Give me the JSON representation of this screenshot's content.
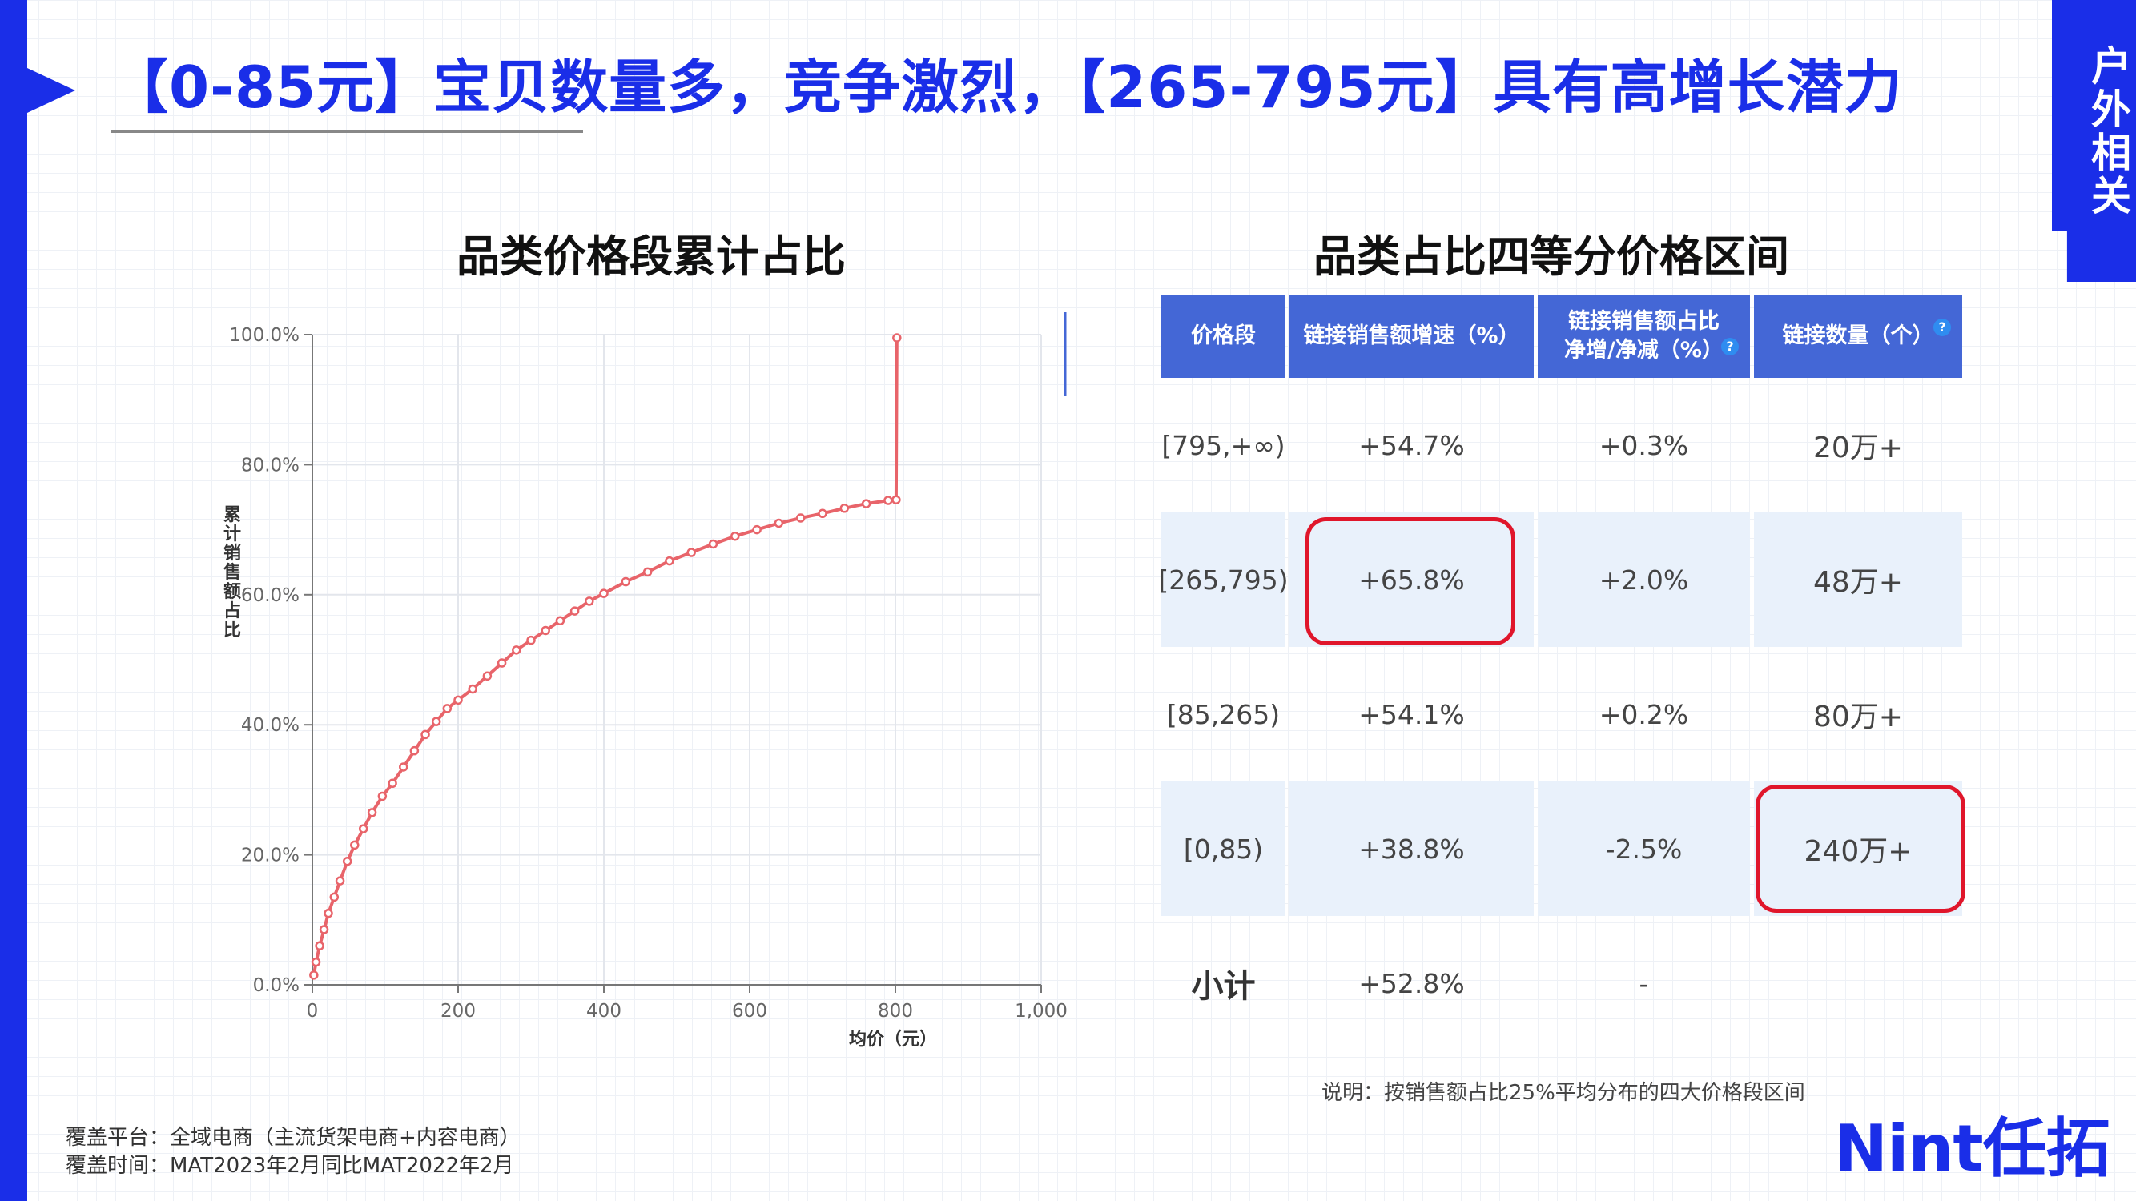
{
  "title": "【0-85元】宝贝数量多，竞争激烈，【265-795元】具有高增长潜力",
  "side_tab": "户外相关",
  "chart_data": {
    "type": "line",
    "title": "品类价格段累计占比",
    "xlabel": "均价（元）",
    "ylabel": "累计销售额占比",
    "xlim": [
      0,
      1000
    ],
    "ylim": [
      0,
      100
    ],
    "x_ticks": [
      "0",
      "200",
      "400",
      "600",
      "800",
      "1,000"
    ],
    "y_ticks": [
      "0.0%",
      "20.0%",
      "40.0%",
      "60.0%",
      "80.0%",
      "100.0%"
    ],
    "grid": true,
    "color": "#e8646a",
    "series": [
      {
        "x": [
          2,
          5,
          10,
          16,
          22,
          30,
          38,
          48,
          58,
          70,
          82,
          96,
          110,
          125,
          140,
          155,
          170,
          185,
          200,
          220,
          240,
          260,
          280,
          300,
          320,
          340,
          360,
          380,
          400,
          430,
          460,
          490,
          520,
          550,
          580,
          610,
          640,
          670,
          700,
          730,
          760,
          790,
          801,
          802
        ],
        "y": [
          1.5,
          3.5,
          6,
          8.5,
          11,
          13.5,
          16,
          19,
          21.5,
          24,
          26.5,
          29,
          31,
          33.5,
          36,
          38.5,
          40.5,
          42.5,
          43.8,
          45.5,
          47.5,
          49.5,
          51.5,
          53,
          54.5,
          56,
          57.5,
          59,
          60.2,
          62,
          63.5,
          65.2,
          66.5,
          67.8,
          69,
          70,
          71,
          71.8,
          72.5,
          73.3,
          74,
          74.5,
          74.6,
          99.5
        ]
      }
    ]
  },
  "table": {
    "title": "品类占比四等分价格区间",
    "headers": [
      "价格段",
      "链接销售额增速（%）",
      "链接销售额占比\n净增/净减（%）",
      "链接数量（个）"
    ],
    "rows": [
      {
        "range": "[795,+∞)",
        "growth": "+54.7%",
        "share_change": "+0.3%",
        "count": "20万+"
      },
      {
        "range": "[265,795)",
        "growth": "+65.8%",
        "share_change": "+2.0%",
        "count": "48万+"
      },
      {
        "range": "[85,265)",
        "growth": "+54.1%",
        "share_change": "+0.2%",
        "count": "80万+"
      },
      {
        "range": "[0,85)",
        "growth": "+38.8%",
        "share_change": "-2.5%",
        "count": "240万+"
      }
    ],
    "subtotal": {
      "label": "小计",
      "growth": "+52.8%",
      "share_change": "-"
    },
    "note": "说明：按销售额占比25%平均分布的四大价格段区间"
  },
  "footer": {
    "platform": "覆盖平台：全域电商（主流货架电商+内容电商）",
    "period": "覆盖时间：MAT2023年2月同比MAT2022年2月"
  },
  "brand": "Nint任拓",
  "highlight_color": "#e0162b",
  "accent_color": "#1a2ee8"
}
